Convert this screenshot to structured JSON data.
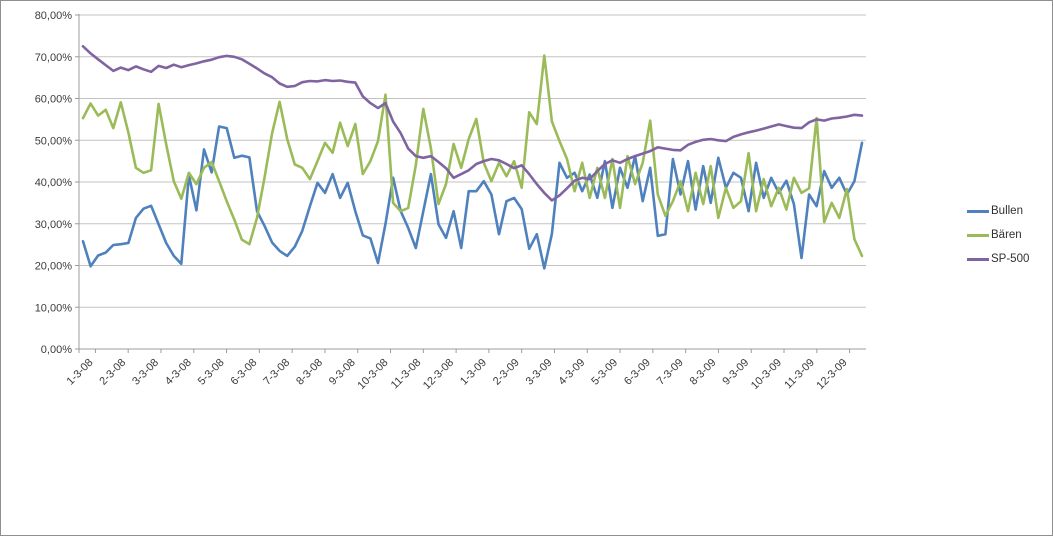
{
  "chart_data": {
    "type": "line",
    "title": "",
    "grid": true,
    "legend_position": "right",
    "background_color": "#FFFFFF",
    "frame_border_color": "#8F8F8F",
    "gridline_color": "#C3C3C3",
    "axis_line_color": "#9C9C9C",
    "axis_text_color": "#3B3B3B",
    "y_axis": {
      "min": 0,
      "max": 80,
      "step": 10,
      "tick_labels": [
        "0,00%",
        "10,00%",
        "20,00%",
        "30,00%",
        "40,00%",
        "50,00%",
        "60,00%",
        "70,00%",
        "80,00%"
      ]
    },
    "x_axis": {
      "tick_labels": [
        "1-3-08",
        "2-3-08",
        "3-3-08",
        "4-3-08",
        "5-3-08",
        "6-3-08",
        "7-3-08",
        "8-3-08",
        "9-3-08",
        "10-3-08",
        "11-3-08",
        "12-3-08",
        "1-3-09",
        "2-3-09",
        "3-3-09",
        "4-3-09",
        "5-3-09",
        "6-3-09",
        "7-3-09",
        "8-3-09",
        "9-3-09",
        "10-3-09",
        "11-3-09",
        "12-3-09"
      ]
    },
    "series": [
      {
        "name": "Bullen",
        "color": "#4F81BD",
        "values": [
          25.8,
          19.8,
          22.4,
          23.1,
          24.9,
          25.1,
          25.4,
          31.4,
          33.6,
          34.3,
          29.9,
          25.4,
          22.3,
          20.4,
          41.6,
          33.2,
          47.8,
          42.3,
          53.3,
          52.9,
          45.8,
          46.3,
          45.9,
          33.0,
          29.5,
          25.5,
          23.5,
          22.3,
          24.5,
          28.3,
          34.2,
          39.8,
          37.4,
          41.9,
          36.2,
          39.8,
          33.0,
          27.2,
          26.5,
          20.6,
          30.0,
          41.0,
          33.0,
          29.0,
          24.2,
          33.0,
          41.9,
          29.9,
          26.6,
          33.0,
          24.2,
          37.8,
          37.8,
          40.2,
          37.0,
          27.5,
          35.4,
          36.2,
          33.5,
          24.0,
          27.5,
          19.3,
          27.6,
          44.6,
          41.0,
          42.2,
          37.8,
          41.8,
          36.2,
          45.0,
          33.8,
          43.4,
          38.6,
          46.2,
          35.4,
          43.4,
          27.1,
          27.5,
          45.5,
          37.0,
          45.0,
          33.4,
          43.8,
          35.0,
          45.8,
          38.6,
          42.2,
          41.0,
          33.0,
          44.6,
          36.2,
          41.0,
          37.4,
          40.3,
          34.7,
          21.8,
          37.0,
          34.2,
          42.6,
          38.6,
          41.0,
          37.0,
          40.2,
          49.4
        ]
      },
      {
        "name": "Bären",
        "color": "#9BBB59",
        "values": [
          55.3,
          58.8,
          55.9,
          57.3,
          52.9,
          59.1,
          51.8,
          43.4,
          42.2,
          42.8,
          58.7,
          49.0,
          40.2,
          36.0,
          42.2,
          39.5,
          43.4,
          44.8,
          40.2,
          35.4,
          31.0,
          26.2,
          25.1,
          31.4,
          41.0,
          51.7,
          59.2,
          50.3,
          44.2,
          43.4,
          40.7,
          45.0,
          49.4,
          47.0,
          54.2,
          48.6,
          53.9,
          41.9,
          45.0,
          49.8,
          60.9,
          35.0,
          33.0,
          33.8,
          44.0,
          57.5,
          48.1,
          34.7,
          39.5,
          49.1,
          43.4,
          50.3,
          55.1,
          44.6,
          40.2,
          44.6,
          41.4,
          45.0,
          38.6,
          56.7,
          53.9,
          70.3,
          54.5,
          49.8,
          45.5,
          37.8,
          44.6,
          36.2,
          43.4,
          36.2,
          45.5,
          33.8,
          46.2,
          39.5,
          44.6,
          54.7,
          37.0,
          31.9,
          35.4,
          40.2,
          33.0,
          42.2,
          34.7,
          43.8,
          31.4,
          38.6,
          33.8,
          35.4,
          46.9,
          33.0,
          40.7,
          34.2,
          38.6,
          33.4,
          41.0,
          37.4,
          38.5,
          55.3,
          30.4,
          35.0,
          31.4,
          38.3,
          26.3,
          22.3
        ]
      },
      {
        "name": "SP-500",
        "color": "#8064A2",
        "values": [
          72.5,
          70.8,
          69.4,
          68.0,
          66.6,
          67.4,
          66.8,
          67.7,
          67.0,
          66.4,
          67.8,
          67.3,
          68.1,
          67.5,
          68.0,
          68.4,
          68.9,
          69.3,
          69.9,
          70.2,
          70.0,
          69.4,
          68.3,
          67.2,
          66.0,
          65.1,
          63.6,
          62.8,
          63.0,
          63.9,
          64.2,
          64.1,
          64.4,
          64.2,
          64.3,
          64.0,
          63.8,
          60.5,
          58.9,
          57.7,
          58.9,
          54.5,
          51.7,
          48.0,
          46.2,
          45.8,
          46.2,
          44.8,
          43.3,
          41.0,
          41.9,
          42.8,
          44.3,
          45.0,
          45.5,
          45.2,
          44.3,
          43.3,
          44.0,
          41.9,
          39.5,
          37.4,
          35.6,
          36.8,
          38.5,
          40.3,
          41.0,
          40.7,
          42.6,
          44.3,
          45.2,
          44.6,
          45.5,
          46.2,
          46.8,
          47.4,
          48.3,
          48.0,
          47.7,
          47.6,
          48.9,
          49.6,
          50.1,
          50.3,
          50.0,
          49.8,
          50.8,
          51.4,
          51.9,
          52.3,
          52.8,
          53.3,
          53.8,
          53.4,
          53.0,
          52.9,
          54.3,
          55.0,
          54.7,
          55.2,
          55.4,
          55.7,
          56.1,
          55.9
        ]
      }
    ]
  }
}
